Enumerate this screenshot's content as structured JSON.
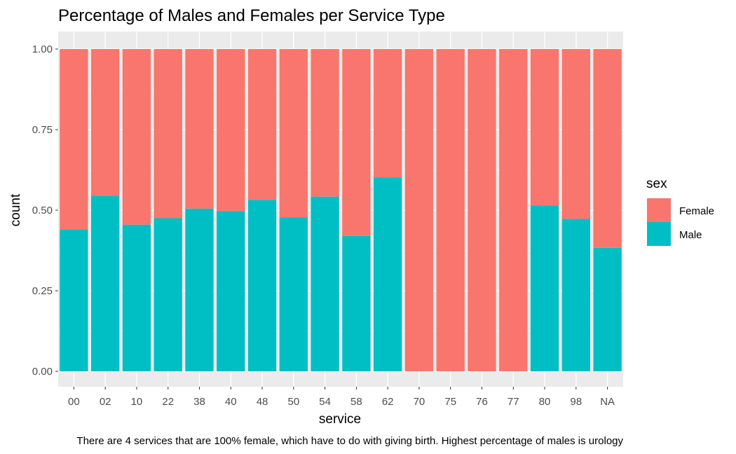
{
  "chart_data": {
    "type": "bar",
    "stacked": true,
    "position": "fill",
    "title": "Percentage of Males and Females per Service Type",
    "xlabel": "service",
    "ylabel": "count",
    "ylim": [
      0,
      1
    ],
    "yticks": [
      "0.00",
      "0.25",
      "0.50",
      "0.75",
      "1.00"
    ],
    "grid": true,
    "categories": [
      "00",
      "02",
      "10",
      "22",
      "38",
      "40",
      "48",
      "50",
      "54",
      "58",
      "62",
      "70",
      "75",
      "76",
      "77",
      "80",
      "98",
      "NA"
    ],
    "series": [
      {
        "name": "Male",
        "color": "#00BFC4",
        "values": [
          0.44,
          0.545,
          0.455,
          0.475,
          0.505,
          0.497,
          0.532,
          0.478,
          0.542,
          0.42,
          0.602,
          0,
          0,
          0,
          0,
          0.515,
          0.473,
          0.383
        ]
      },
      {
        "name": "Female",
        "color": "#F8766D",
        "values": [
          0.56,
          0.455,
          0.545,
          0.525,
          0.495,
          0.503,
          0.468,
          0.522,
          0.458,
          0.58,
          0.398,
          1,
          1,
          1,
          1,
          0.485,
          0.527,
          0.617
        ]
      }
    ],
    "legend": {
      "title": "sex",
      "position": "right",
      "entries": [
        "Female",
        "Male"
      ]
    },
    "caption": "There are 4 services that are 100% female, which have to do with giving birth. Highest percentage of males is urology"
  }
}
